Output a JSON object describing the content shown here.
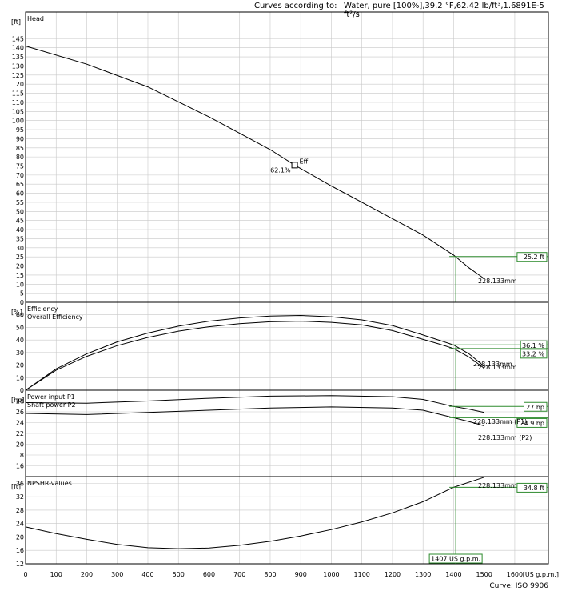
{
  "header": {
    "conditions_label": "Curves according to:",
    "conditions_value": "Water, pure [100%],39.2 °F,62.42 lb/ft³,1.6891E-5 ft²/s"
  },
  "footer": {
    "curve_standard": "Curve: ISO 9906"
  },
  "colors": {
    "curve": "#000000",
    "duty_line": "#2e8b2e",
    "grid": "#c8c8c8",
    "panel_border": "#000000"
  },
  "chart_data": [
    {
      "type": "line",
      "title": "Head",
      "ylabel": "[ft]",
      "ylim": [
        0,
        150
      ],
      "yticks": [
        0,
        5,
        10,
        15,
        20,
        25,
        30,
        35,
        40,
        45,
        50,
        55,
        60,
        65,
        70,
        75,
        80,
        85,
        90,
        95,
        100,
        105,
        110,
        115,
        120,
        125,
        130,
        135,
        140,
        145
      ],
      "series": [
        {
          "name": "228.133mm",
          "x": [
            0,
            200,
            400,
            600,
            800,
            880,
            1000,
            1200,
            1300,
            1400,
            1450,
            1500
          ],
          "y": [
            141,
            131,
            118.5,
            102,
            84,
            75.5,
            64,
            46,
            37,
            26,
            19,
            13
          ]
        }
      ],
      "annotations": {
        "eff_marker_x": 880,
        "eff_marker_y": 75.5,
        "eff_label": "Eff.",
        "eff_value_label": "62.1%",
        "curve_label": "228.133mm",
        "duty_value_label": "25.2 ft",
        "duty_value": 25.2
      }
    },
    {
      "type": "line",
      "title": "Efficiency",
      "subtitle": "Overall Efficiency",
      "ylabel": "[%]",
      "ylim": [
        0,
        70
      ],
      "yticks": [
        0,
        10,
        20,
        30,
        40,
        50,
        60
      ],
      "series": [
        {
          "name": "228.133mm",
          "x": [
            0,
            100,
            200,
            300,
            400,
            500,
            600,
            700,
            800,
            900,
            1000,
            1100,
            1200,
            1300,
            1350,
            1400,
            1450,
            1500
          ],
          "y": [
            0,
            17,
            29,
            38.5,
            45.5,
            51,
            55,
            57.5,
            59,
            59.5,
            58.5,
            56,
            51.5,
            44,
            40,
            36.1,
            29,
            19
          ]
        },
        {
          "name": "228.133mm",
          "x": [
            0,
            100,
            200,
            300,
            400,
            500,
            600,
            700,
            800,
            900,
            1000,
            1100,
            1200,
            1300,
            1350,
            1400,
            1450,
            1500
          ],
          "y": [
            0,
            16,
            27,
            35.5,
            42,
            47,
            50.5,
            53,
            54.5,
            55,
            54,
            52,
            47.5,
            40.5,
            37,
            33.2,
            26.5,
            17.5
          ]
        }
      ],
      "annotations": {
        "curve_label": "228.133mm",
        "duty_value_labels": [
          "36.1 %",
          "33.2 %"
        ],
        "duty_values": [
          36.1,
          33.2
        ]
      }
    },
    {
      "type": "line",
      "title": "Power input P1",
      "subtitle": "Shaft power P2",
      "ylabel": "[hp]",
      "ylim": [
        14,
        30
      ],
      "yticks": [
        16,
        18,
        20,
        22,
        24,
        26,
        28
      ],
      "series": [
        {
          "name": "228.133mm (P1)",
          "x": [
            0,
            200,
            400,
            600,
            800,
            1000,
            1200,
            1300,
            1400,
            1450,
            1500
          ],
          "y": [
            27.7,
            27.6,
            28,
            28.5,
            28.9,
            29,
            28.8,
            28.3,
            27,
            26.5,
            25.9
          ]
        },
        {
          "name": "228.133mm (P2)",
          "x": [
            0,
            200,
            400,
            600,
            800,
            1000,
            1200,
            1300,
            1400,
            1450,
            1500
          ],
          "y": [
            25.7,
            25.5,
            25.9,
            26.3,
            26.7,
            26.9,
            26.7,
            26.3,
            24.9,
            24.2,
            23.4
          ]
        }
      ],
      "annotations": {
        "labels": [
          "228.133mm (P1)",
          "228.133mm (P2)"
        ],
        "duty_value_labels": [
          "27 hp",
          "24.9 hp"
        ],
        "duty_values": [
          27,
          24.9
        ]
      }
    },
    {
      "type": "line",
      "title": "NPSHR-values",
      "ylabel": "[ft]",
      "ylim": [
        12,
        38
      ],
      "yticks": [
        12,
        16,
        20,
        24,
        28,
        32,
        36
      ],
      "series": [
        {
          "name": "228.133mm",
          "x": [
            0,
            100,
            200,
            300,
            400,
            500,
            600,
            700,
            800,
            900,
            1000,
            1100,
            1200,
            1300,
            1400,
            1500
          ],
          "y": [
            23,
            21,
            19.3,
            17.8,
            16.8,
            16.5,
            16.7,
            17.5,
            18.7,
            20.3,
            22.2,
            24.5,
            27.2,
            30.5,
            34.8,
            37.8
          ]
        }
      ],
      "annotations": {
        "curve_label": "228.133mm",
        "duty_value_label": "34.8 ft",
        "duty_value": 34.8
      }
    }
  ],
  "x_axis": {
    "unit": "[US g.p.m.]",
    "ticks": [
      0,
      100,
      200,
      300,
      400,
      500,
      600,
      700,
      800,
      900,
      1000,
      1100,
      1200,
      1300,
      1400,
      1500,
      1600
    ],
    "xlim": [
      0,
      1710
    ],
    "duty_flow": 1407,
    "duty_flow_label": "1407 US g.p.m."
  }
}
